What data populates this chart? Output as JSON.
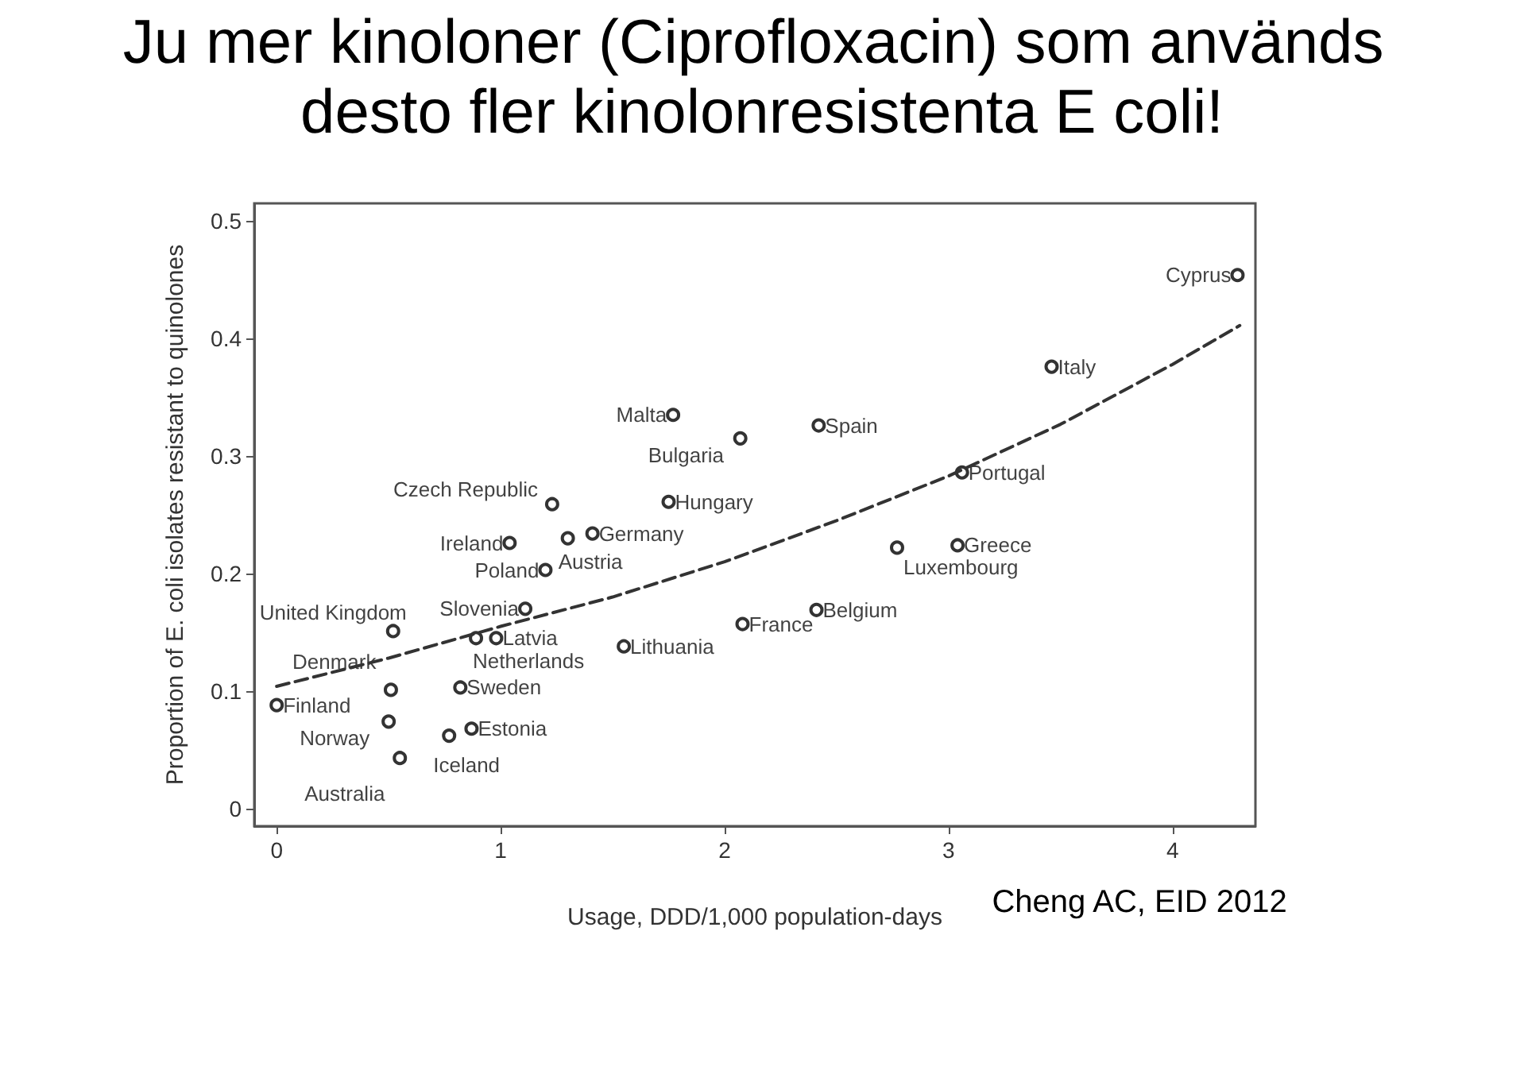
{
  "chart_data": {
    "type": "scatter",
    "title": "Ju mer kinoloner (Ciprofloxacin) som används desto fler kinolonresistenta E coli!",
    "xlabel": "Usage, DDD/1,000 population-days",
    "ylabel": "Proportion of E. coli isolates resistant to quinolones",
    "xlim": [
      -0.1,
      4.37
    ],
    "ylim": [
      -0.015,
      0.515
    ],
    "xticks": [
      0,
      1,
      2,
      3,
      4
    ],
    "yticks": [
      0,
      0.1,
      0.2,
      0.3,
      0.4,
      0.5
    ],
    "grid": false,
    "series": [
      {
        "color": "#000000",
        "marker": "circle",
        "x": [
          0,
          0.51,
          0.52,
          0.5,
          0.55,
          0.77,
          0.87,
          0.82,
          0.89,
          0.98,
          1.11,
          1.2,
          1.04,
          1.23,
          1.3,
          1.41,
          1.75,
          1.77,
          2.07,
          1.55,
          2.08,
          2.41,
          2.42,
          2.77,
          3.04,
          3.06,
          3.46,
          4.29
        ],
        "values": [
          0.088,
          0.101,
          0.151,
          0.074,
          0.043,
          0.062,
          0.068,
          0.103,
          0.145,
          0.145,
          0.17,
          0.203,
          0.226,
          0.259,
          0.23,
          0.234,
          0.261,
          0.335,
          0.315,
          0.138,
          0.157,
          0.169,
          0.326,
          0.222,
          0.224,
          0.286,
          0.376,
          0.454
        ]
      },
      {
        "type": "line",
        "color": "#333333",
        "marker": "none",
        "line_style": "dashed",
        "x": [
          0,
          0.5,
          1,
          1.5,
          2,
          2.5,
          3,
          3.5,
          4,
          4.3
        ],
        "values": [
          0.104,
          0.128,
          0.155,
          0.18,
          0.21,
          0.245,
          0.283,
          0.327,
          0.378,
          0.411
        ]
      }
    ],
    "annotations": [
      {
        "text": "Finland",
        "x": 0,
        "y": 0.088
      },
      {
        "text": "Denmark",
        "x": 0.51,
        "y": 0.101
      },
      {
        "text": "United Kingdom",
        "x": 0.52,
        "y": 0.151
      },
      {
        "text": "Norway",
        "x": 0.5,
        "y": 0.074
      },
      {
        "text": "Australia",
        "x": 0.55,
        "y": 0.043
      },
      {
        "text": "Iceland",
        "x": 0.77,
        "y": 0.062
      },
      {
        "text": "Estonia",
        "x": 0.87,
        "y": 0.068
      },
      {
        "text": "Sweden",
        "x": 0.82,
        "y": 0.103
      },
      {
        "text": "Netherlands",
        "x": 0.89,
        "y": 0.145
      },
      {
        "text": "Latvia",
        "x": 0.98,
        "y": 0.145
      },
      {
        "text": "Slovenia",
        "x": 1.11,
        "y": 0.17
      },
      {
        "text": "Poland",
        "x": 1.2,
        "y": 0.203
      },
      {
        "text": "Ireland",
        "x": 1.04,
        "y": 0.226
      },
      {
        "text": "Czech Republic",
        "x": 1.23,
        "y": 0.259
      },
      {
        "text": "Austria",
        "x": 1.3,
        "y": 0.23
      },
      {
        "text": "Germany",
        "x": 1.41,
        "y": 0.234
      },
      {
        "text": "Hungary",
        "x": 1.75,
        "y": 0.261
      },
      {
        "text": "Malta",
        "x": 1.77,
        "y": 0.335
      },
      {
        "text": "Bulgaria",
        "x": 2.07,
        "y": 0.315
      },
      {
        "text": "Lithuania",
        "x": 1.55,
        "y": 0.138
      },
      {
        "text": "France",
        "x": 2.08,
        "y": 0.157
      },
      {
        "text": "Belgium",
        "x": 2.41,
        "y": 0.169
      },
      {
        "text": "Spain",
        "x": 2.42,
        "y": 0.326
      },
      {
        "text": "Luxembourg",
        "x": 2.77,
        "y": 0.222
      },
      {
        "text": "Greece",
        "x": 3.04,
        "y": 0.224
      },
      {
        "text": "Portugal",
        "x": 3.06,
        "y": 0.286
      },
      {
        "text": "Italy",
        "x": 3.46,
        "y": 0.376
      },
      {
        "text": "Cyprus",
        "x": 4.29,
        "y": 0.454
      },
      "Cheng AC, EID 2012"
    ]
  }
}
